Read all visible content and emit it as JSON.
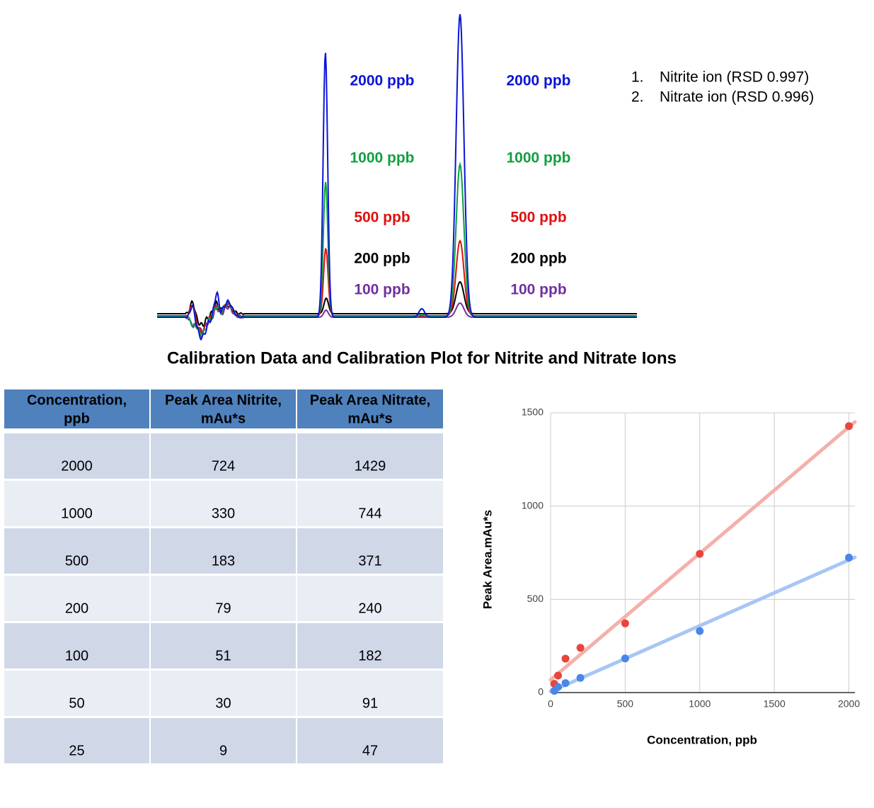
{
  "chromatogram": {
    "label_colors": [
      "#0a14d8",
      "#10a040",
      "#e01010",
      "#000000",
      "#7030a0"
    ],
    "peaks": [
      {
        "labels": [
          "2000 ppb",
          "1000 ppb",
          "500 ppb",
          "200 ppb",
          "100 ppb"
        ]
      },
      {
        "labels": [
          "2000 ppb",
          "1000 ppb",
          "500 ppb",
          "200 ppb",
          "100 ppb"
        ]
      }
    ],
    "legend": [
      {
        "number": "1.",
        "text": "Nitrite ion (RSD 0.997)"
      },
      {
        "number": "2.",
        "text": "Nitrate ion (RSD 0.996)"
      }
    ]
  },
  "title": "Calibration Data and Calibration Plot for Nitrite and Nitrate Ions",
  "table": {
    "header": [
      [
        "Concentration,",
        "ppb"
      ],
      [
        "Peak Area Nitrite,",
        "mAu*s"
      ],
      [
        "Peak Area Nitrate,",
        "mAu*s"
      ]
    ],
    "rows": [
      [
        "2000",
        "724",
        "1429"
      ],
      [
        "1000",
        "330",
        "744"
      ],
      [
        "500",
        "183",
        "371"
      ],
      [
        "200",
        "79",
        "240"
      ],
      [
        "100",
        "51",
        "182"
      ],
      [
        "50",
        "30",
        "91"
      ],
      [
        "25",
        "9",
        "47"
      ]
    ]
  },
  "chart_data": {
    "type": "scatter",
    "x_label": "Concentration, ppb",
    "y_label": "Peak Area.mAu*s",
    "x": [
      2000,
      1000,
      500,
      200,
      100,
      50,
      25
    ],
    "series": [
      {
        "color": "#e8453c",
        "trend_color": "#f4b0aa",
        "values": [
          1429,
          744,
          371,
          240,
          182,
          91,
          47
        ]
      },
      {
        "color": "#4a86e8",
        "trend_color": "#a8c6f4",
        "values": [
          724,
          330,
          183,
          79,
          51,
          30,
          9
        ]
      }
    ],
    "trendline": true,
    "grid": true,
    "xlim": [
      0,
      2040
    ],
    "ylim": [
      0,
      1500
    ],
    "xticks": [
      0,
      500,
      1000,
      1500,
      2000
    ],
    "yticks": [
      0,
      500,
      1000,
      1500
    ]
  }
}
